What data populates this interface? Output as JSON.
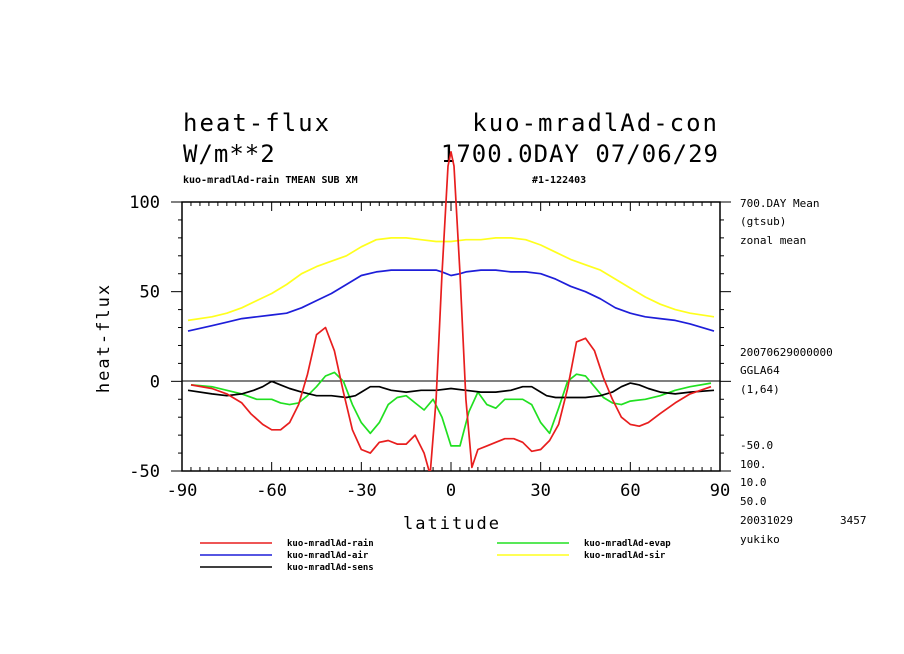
{
  "header": {
    "variable": "heat-flux",
    "experiment": "kuo-mradlAd-con",
    "units": "W/m**2",
    "time": "1700.0DAY 07/06/29",
    "subtitle": "kuo-mradlAd-rain TMEAN SUB XM",
    "run_id": "#1-122403"
  },
  "side_info": {
    "lines_top": [
      "700.DAY Mean",
      "(gtsub)",
      "zonal mean"
    ],
    "lines_mid": [
      "20070629000000",
      "GGLA64",
      "(1,64)"
    ],
    "lines_bottom": [
      "-50.0",
      "100.",
      "10.0",
      "50.0"
    ],
    "date": "20031029",
    "number": "3457",
    "user": "yukiko"
  },
  "chart_data": {
    "type": "line",
    "xlabel": "latitude",
    "ylabel": "heat-flux",
    "xlim": [
      -90,
      90
    ],
    "ylim": [
      -50,
      100
    ],
    "xticks": [
      -90,
      -60,
      -30,
      0,
      30,
      60,
      90
    ],
    "yticks": [
      100,
      50,
      0,
      -50
    ],
    "grid": false,
    "legend_position": "bottom",
    "series": [
      {
        "name": "kuo-mradlAd-rain",
        "color": "#e81e1e",
        "x": [
          -87,
          -80,
          -75,
          -70,
          -67,
          -63,
          -60,
          -57,
          -54,
          -51,
          -48,
          -45,
          -42,
          -39,
          -36,
          -33,
          -30,
          -27,
          -24,
          -21,
          -18,
          -15,
          -12,
          -9,
          -7,
          -5,
          -3,
          -1,
          0,
          1,
          3,
          5,
          7,
          9,
          12,
          15,
          18,
          21,
          24,
          27,
          30,
          33,
          36,
          39,
          42,
          45,
          48,
          51,
          54,
          57,
          60,
          63,
          66,
          70,
          75,
          80,
          87
        ],
        "y": [
          -2,
          -4,
          -7,
          -12,
          -18,
          -24,
          -27,
          -27,
          -23,
          -13,
          4,
          26,
          30,
          17,
          -6,
          -27,
          -38,
          -40,
          -34,
          -33,
          -35,
          -35,
          -30,
          -40,
          -52,
          -10,
          60,
          120,
          128,
          120,
          60,
          -10,
          -48,
          -38,
          -36,
          -34,
          -32,
          -32,
          -34,
          -39,
          -38,
          -33,
          -24,
          -4,
          22,
          24,
          17,
          2,
          -10,
          -20,
          -24,
          -25,
          -23,
          -18,
          -12,
          -7,
          -3
        ]
      },
      {
        "name": "kuo-mradlAd-evap",
        "color": "#21e021",
        "x": [
          -87,
          -80,
          -75,
          -70,
          -65,
          -60,
          -57,
          -54,
          -51,
          -48,
          -45,
          -42,
          -39,
          -36,
          -33,
          -30,
          -27,
          -24,
          -21,
          -18,
          -15,
          -12,
          -9,
          -6,
          -3,
          0,
          3,
          6,
          9,
          12,
          15,
          18,
          21,
          24,
          27,
          30,
          33,
          36,
          39,
          42,
          45,
          48,
          51,
          54,
          57,
          60,
          65,
          70,
          75,
          80,
          87
        ],
        "y": [
          -2,
          -3,
          -5,
          -7,
          -10,
          -10,
          -12,
          -13,
          -12,
          -8,
          -3,
          3,
          5,
          0,
          -13,
          -23,
          -29,
          -23,
          -13,
          -9,
          -8,
          -12,
          -16,
          -10,
          -20,
          -36,
          -36,
          -17,
          -6,
          -13,
          -15,
          -10,
          -10,
          -10,
          -13,
          -23,
          -29,
          -15,
          0,
          4,
          3,
          -3,
          -9,
          -12,
          -13,
          -11,
          -10,
          -8,
          -5,
          -3,
          -1
        ]
      },
      {
        "name": "kuo-mradlAd-air",
        "color": "#1e1ed9",
        "x": [
          -88,
          -80,
          -75,
          -70,
          -65,
          -60,
          -55,
          -50,
          -45,
          -40,
          -35,
          -30,
          -25,
          -20,
          -15,
          -10,
          -5,
          -3,
          0,
          3,
          5,
          10,
          15,
          20,
          25,
          30,
          35,
          40,
          45,
          50,
          55,
          60,
          65,
          70,
          75,
          80,
          88
        ],
        "y": [
          28,
          31,
          33,
          35,
          36,
          37,
          38,
          41,
          45,
          49,
          54,
          59,
          61,
          62,
          62,
          62,
          62,
          61,
          59,
          60,
          61,
          62,
          62,
          61,
          61,
          60,
          57,
          53,
          50,
          46,
          41,
          38,
          36,
          35,
          34,
          32,
          28
        ]
      },
      {
        "name": "kuo-mradlAd-sir",
        "color": "#ffff1e",
        "x": [
          -88,
          -80,
          -75,
          -70,
          -65,
          -60,
          -55,
          -50,
          -45,
          -40,
          -35,
          -30,
          -25,
          -20,
          -15,
          -10,
          -5,
          0,
          5,
          10,
          15,
          20,
          25,
          30,
          35,
          40,
          45,
          50,
          55,
          60,
          65,
          70,
          75,
          80,
          88
        ],
        "y": [
          34,
          36,
          38,
          41,
          45,
          49,
          54,
          60,
          64,
          67,
          70,
          75,
          79,
          80,
          80,
          79,
          78,
          78,
          79,
          79,
          80,
          80,
          79,
          76,
          72,
          68,
          65,
          62,
          57,
          52,
          47,
          43,
          40,
          38,
          36
        ]
      },
      {
        "name": "kuo-mradlAd-sens",
        "color": "#000000",
        "x": [
          -88,
          -80,
          -75,
          -70,
          -66,
          -63,
          -60,
          -57,
          -54,
          -50,
          -45,
          -40,
          -35,
          -32,
          -30,
          -27,
          -24,
          -20,
          -15,
          -10,
          -5,
          0,
          5,
          10,
          15,
          20,
          24,
          27,
          30,
          32,
          35,
          40,
          45,
          50,
          54,
          57,
          60,
          63,
          66,
          70,
          75,
          80,
          88
        ],
        "y": [
          -5,
          -7,
          -8,
          -7,
          -5,
          -3,
          0,
          -2,
          -4,
          -6,
          -8,
          -8,
          -9,
          -8,
          -6,
          -3,
          -3,
          -5,
          -6,
          -5,
          -5,
          -4,
          -5,
          -6,
          -6,
          -5,
          -3,
          -3,
          -6,
          -8,
          -9,
          -9,
          -9,
          -8,
          -6,
          -3,
          -1,
          -2,
          -4,
          -6,
          -7,
          -6,
          -5
        ]
      }
    ]
  }
}
